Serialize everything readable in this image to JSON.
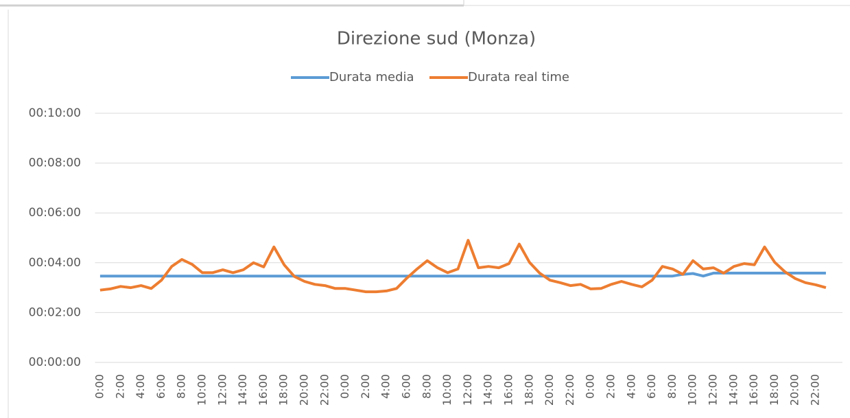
{
  "chart_data": {
    "type": "line",
    "title": "Direzione sud (Monza)",
    "categories": [
      "0:00",
      null,
      "2:00",
      null,
      "4:00",
      null,
      "6:00",
      null,
      "8:00",
      null,
      "10:00",
      null,
      "12:00",
      null,
      "14:00",
      null,
      "16:00",
      null,
      "18:00",
      null,
      "20:00",
      null,
      "22:00",
      null,
      "0:00",
      null,
      "2:00",
      null,
      "4:00",
      null,
      "6:00",
      null,
      "8:00",
      null,
      "10:00",
      null,
      "12:00",
      null,
      "14:00",
      null,
      "16:00",
      null,
      "18:00",
      null,
      "20:00",
      null,
      "22:00",
      null,
      "0:00",
      null,
      "2:00",
      null,
      "4:00",
      null,
      "6:00",
      null,
      "8:00",
      null,
      "10:00",
      null,
      "12:00",
      null,
      "14:00",
      null,
      "16:00",
      null,
      "18:00",
      null,
      "20:00",
      null,
      "22:00",
      null
    ],
    "series": [
      {
        "name": "Durata media",
        "color": "#5b9bd5",
        "values": [
          208,
          208,
          208,
          208,
          208,
          208,
          208,
          208,
          208,
          208,
          208,
          208,
          208,
          208,
          208,
          208,
          208,
          208,
          208,
          208,
          208,
          208,
          208,
          208,
          208,
          208,
          208,
          208,
          208,
          208,
          208,
          208,
          208,
          208,
          208,
          208,
          208,
          208,
          208,
          208,
          208,
          208,
          208,
          208,
          208,
          208,
          208,
          208,
          208,
          208,
          208,
          208,
          208,
          208,
          208,
          208,
          208,
          212,
          214,
          208,
          215,
          215,
          215,
          215,
          215,
          215,
          215,
          215,
          215,
          215,
          215,
          215
        ]
      },
      {
        "name": "Durata real time",
        "color": "#ed7d31",
        "values": [
          174,
          177,
          183,
          180,
          185,
          178,
          198,
          231,
          248,
          236,
          216,
          216,
          223,
          216,
          223,
          240,
          230,
          278,
          235,
          207,
          195,
          188,
          185,
          178,
          178,
          174,
          170,
          170,
          172,
          178,
          203,
          225,
          245,
          228,
          216,
          225,
          294,
          228,
          231,
          228,
          238,
          285,
          241,
          215,
          198,
          192,
          185,
          188,
          177,
          178,
          188,
          195,
          188,
          182,
          198,
          231,
          225,
          212,
          245,
          225,
          228,
          215,
          231,
          238,
          235,
          278,
          241,
          218,
          202,
          192,
          187,
          180
        ]
      }
    ],
    "ylim": [
      0,
      600
    ],
    "yticks": [
      {
        "value": 0,
        "label": "00:00:00"
      },
      {
        "value": 120,
        "label": "00:02:00"
      },
      {
        "value": 240,
        "label": "00:04:00"
      },
      {
        "value": 360,
        "label": "00:06:00"
      },
      {
        "value": 480,
        "label": "00:08:00"
      },
      {
        "value": 600,
        "label": "00:10:00"
      }
    ],
    "grid": true,
    "legend": "top"
  }
}
